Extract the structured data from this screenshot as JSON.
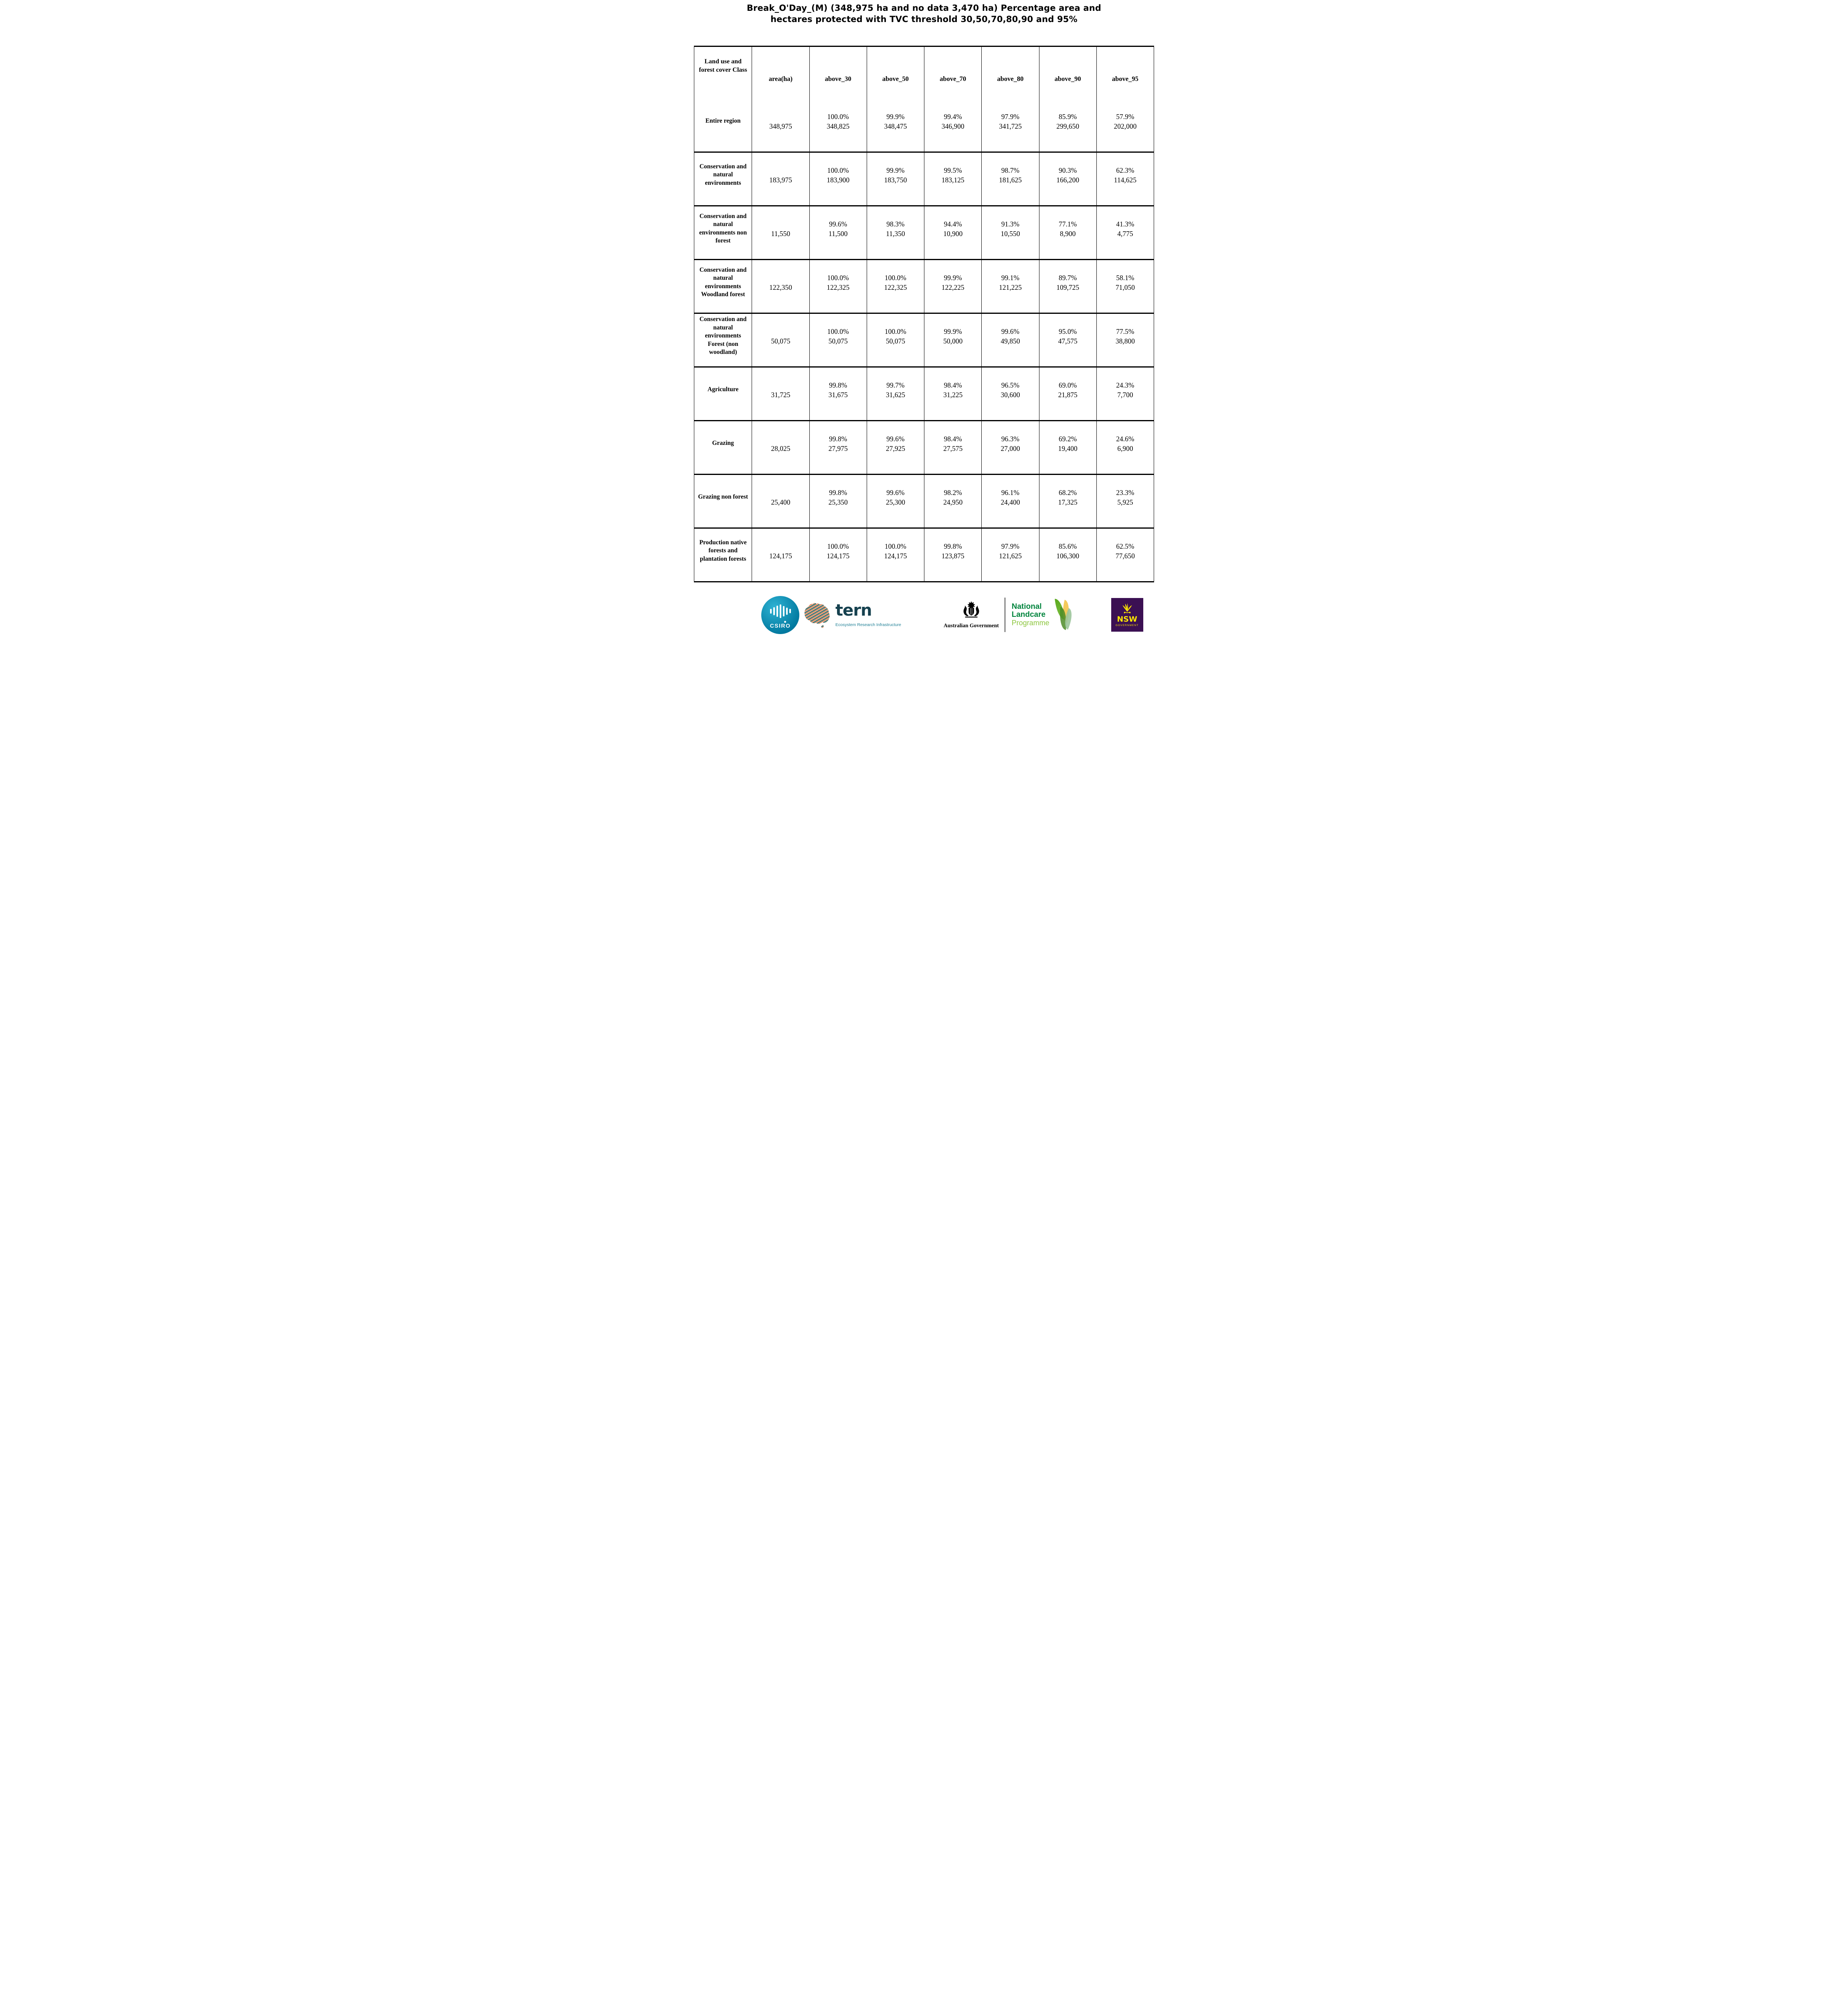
{
  "title": {
    "line1": "Break_O'Day_(M) (348,975 ha and no data 3,470 ha) Percentage area and",
    "line2": "hectares protected with TVC threshold 30,50,70,80,90 and 95%"
  },
  "table": {
    "columns": [
      "Land use and forest cover Class",
      "area(ha)",
      "above_30",
      "above_50",
      "above_70",
      "above_80",
      "above_90",
      "above_95"
    ],
    "rows": [
      {
        "class": "Entire region",
        "area": "348,975",
        "cells": [
          [
            "100.0%",
            "348,825"
          ],
          [
            "99.9%",
            "348,475"
          ],
          [
            "99.4%",
            "346,900"
          ],
          [
            "97.9%",
            "341,725"
          ],
          [
            "85.9%",
            "299,650"
          ],
          [
            "57.9%",
            "202,000"
          ]
        ]
      },
      {
        "class": "Conservation and natural environments",
        "area": "183,975",
        "cells": [
          [
            "100.0%",
            "183,900"
          ],
          [
            "99.9%",
            "183,750"
          ],
          [
            "99.5%",
            "183,125"
          ],
          [
            "98.7%",
            "181,625"
          ],
          [
            "90.3%",
            "166,200"
          ],
          [
            "62.3%",
            "114,625"
          ]
        ]
      },
      {
        "class": "Conservation and natural environments non forest",
        "area": "11,550",
        "cells": [
          [
            "99.6%",
            "11,500"
          ],
          [
            "98.3%",
            "11,350"
          ],
          [
            "94.4%",
            "10,900"
          ],
          [
            "91.3%",
            "10,550"
          ],
          [
            "77.1%",
            "8,900"
          ],
          [
            "41.3%",
            "4,775"
          ]
        ]
      },
      {
        "class": "Conservation and natural environments Woodland forest",
        "area": "122,350",
        "cells": [
          [
            "100.0%",
            "122,325"
          ],
          [
            "100.0%",
            "122,325"
          ],
          [
            "99.9%",
            "122,225"
          ],
          [
            "99.1%",
            "121,225"
          ],
          [
            "89.7%",
            "109,725"
          ],
          [
            "58.1%",
            "71,050"
          ]
        ]
      },
      {
        "class": "Conservation and natural environments Forest (non woodland)",
        "area": "50,075",
        "cells": [
          [
            "100.0%",
            "50,075"
          ],
          [
            "100.0%",
            "50,075"
          ],
          [
            "99.9%",
            "50,000"
          ],
          [
            "99.6%",
            "49,850"
          ],
          [
            "95.0%",
            "47,575"
          ],
          [
            "77.5%",
            "38,800"
          ]
        ]
      },
      {
        "class": "Agriculture",
        "area": "31,725",
        "cells": [
          [
            "99.8%",
            "31,675"
          ],
          [
            "99.7%",
            "31,625"
          ],
          [
            "98.4%",
            "31,225"
          ],
          [
            "96.5%",
            "30,600"
          ],
          [
            "69.0%",
            "21,875"
          ],
          [
            "24.3%",
            "7,700"
          ]
        ]
      },
      {
        "class": "Grazing",
        "area": "28,025",
        "cells": [
          [
            "99.8%",
            "27,975"
          ],
          [
            "99.6%",
            "27,925"
          ],
          [
            "98.4%",
            "27,575"
          ],
          [
            "96.3%",
            "27,000"
          ],
          [
            "69.2%",
            "19,400"
          ],
          [
            "24.6%",
            "6,900"
          ]
        ]
      },
      {
        "class": "Grazing non forest",
        "area": "25,400",
        "cells": [
          [
            "99.8%",
            "25,350"
          ],
          [
            "99.6%",
            "25,300"
          ],
          [
            "98.2%",
            "24,950"
          ],
          [
            "96.1%",
            "24,400"
          ],
          [
            "68.2%",
            "17,325"
          ],
          [
            "23.3%",
            "5,925"
          ]
        ]
      },
      {
        "class": "Production native forests and plantation forests",
        "area": "124,175",
        "cells": [
          [
            "100.0%",
            "124,175"
          ],
          [
            "100.0%",
            "124,175"
          ],
          [
            "99.8%",
            "123,875"
          ],
          [
            "97.9%",
            "121,625"
          ],
          [
            "85.6%",
            "106,300"
          ],
          [
            "62.5%",
            "77,650"
          ]
        ]
      }
    ]
  },
  "footer": {
    "csiro": {
      "label": "CSIRO"
    },
    "tern": {
      "name": "tern",
      "subtitle": "Ecosystem Research Infrastructure"
    },
    "australian_government": {
      "label": "Australian Government"
    },
    "landcare": {
      "line1": "National",
      "line2": "Landcare",
      "line3": "Programme"
    },
    "nsw": {
      "name": "NSW",
      "subtitle": "GOVERNMENT"
    }
  },
  "brand_colors": {
    "csiro-teal-1": "#2fb2d3",
    "csiro-teal-2": "#00789e",
    "tern-dark": "#16414f",
    "tern-teal": "#1f7f95",
    "landcare-green": "#00843d",
    "landcare-light-green": "#8dc63f",
    "nsw-purple": "#3b1053",
    "nsw-yellow": "#ffe800"
  }
}
